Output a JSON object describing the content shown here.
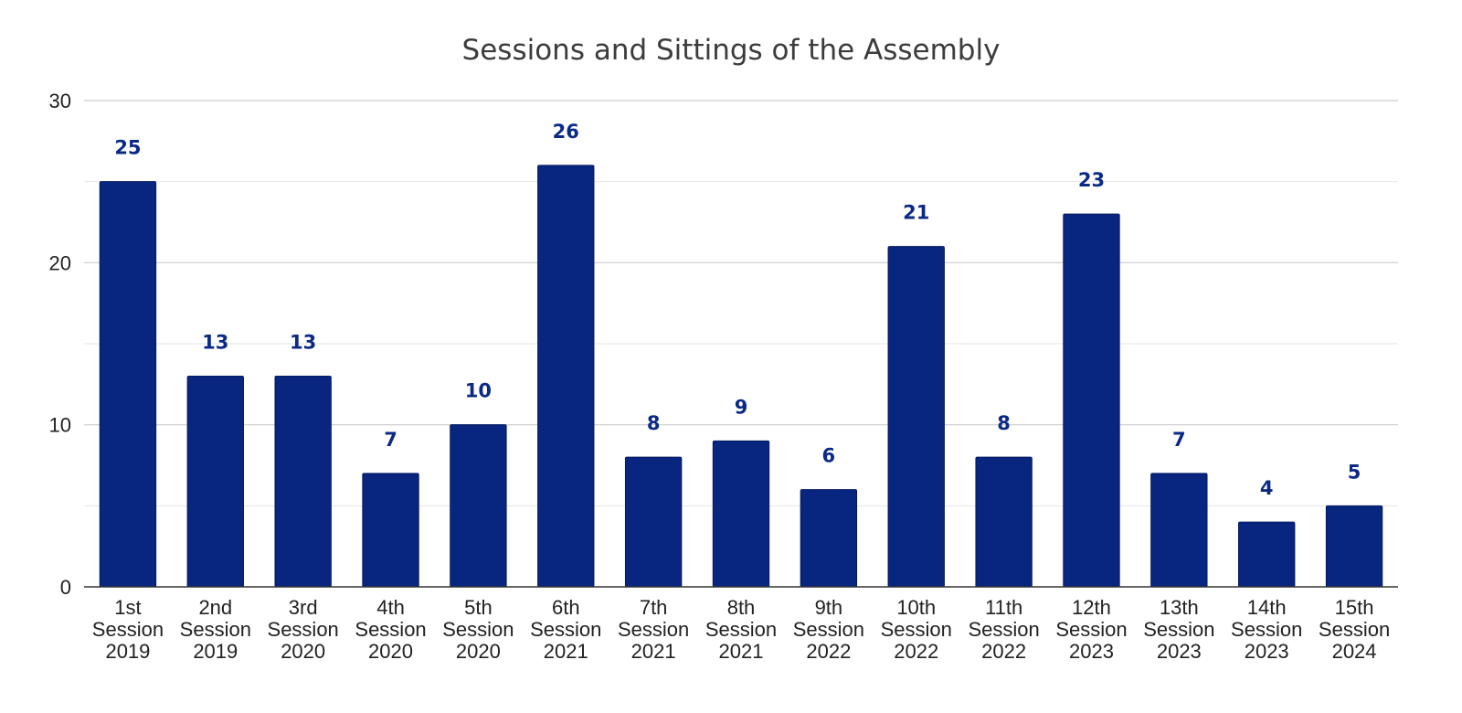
{
  "chart_data": {
    "type": "bar",
    "title": "Sessions and Sittings of the Assembly",
    "xlabel": "",
    "ylabel": "",
    "ylim": [
      0,
      30
    ],
    "yticks": [
      "0",
      "10",
      "20",
      "30"
    ],
    "grid": true,
    "legend": "none",
    "bar_color": "#08267f",
    "label_color": "#0b2a86",
    "categories": [
      [
        "1st",
        "Session",
        "2019"
      ],
      [
        "2nd",
        "Session",
        "2019"
      ],
      [
        "3rd",
        "Session",
        "2020"
      ],
      [
        "4th",
        "Session",
        "2020"
      ],
      [
        "5th",
        "Session",
        "2020"
      ],
      [
        "6th",
        "Session",
        "2021"
      ],
      [
        "7th",
        "Session",
        "2021"
      ],
      [
        "8th",
        "Session",
        "2021"
      ],
      [
        "9th",
        "Session",
        "2022"
      ],
      [
        "10th",
        "Session",
        "2022"
      ],
      [
        "11th",
        "Session",
        "2022"
      ],
      [
        "12th",
        "Session",
        "2023"
      ],
      [
        "13th",
        "Session",
        "2023"
      ],
      [
        "14th",
        "Session",
        "2023"
      ],
      [
        "15th",
        "Session",
        "2024"
      ]
    ],
    "values": [
      25,
      13,
      13,
      7,
      10,
      26,
      8,
      9,
      6,
      21,
      8,
      23,
      7,
      4,
      5
    ]
  }
}
